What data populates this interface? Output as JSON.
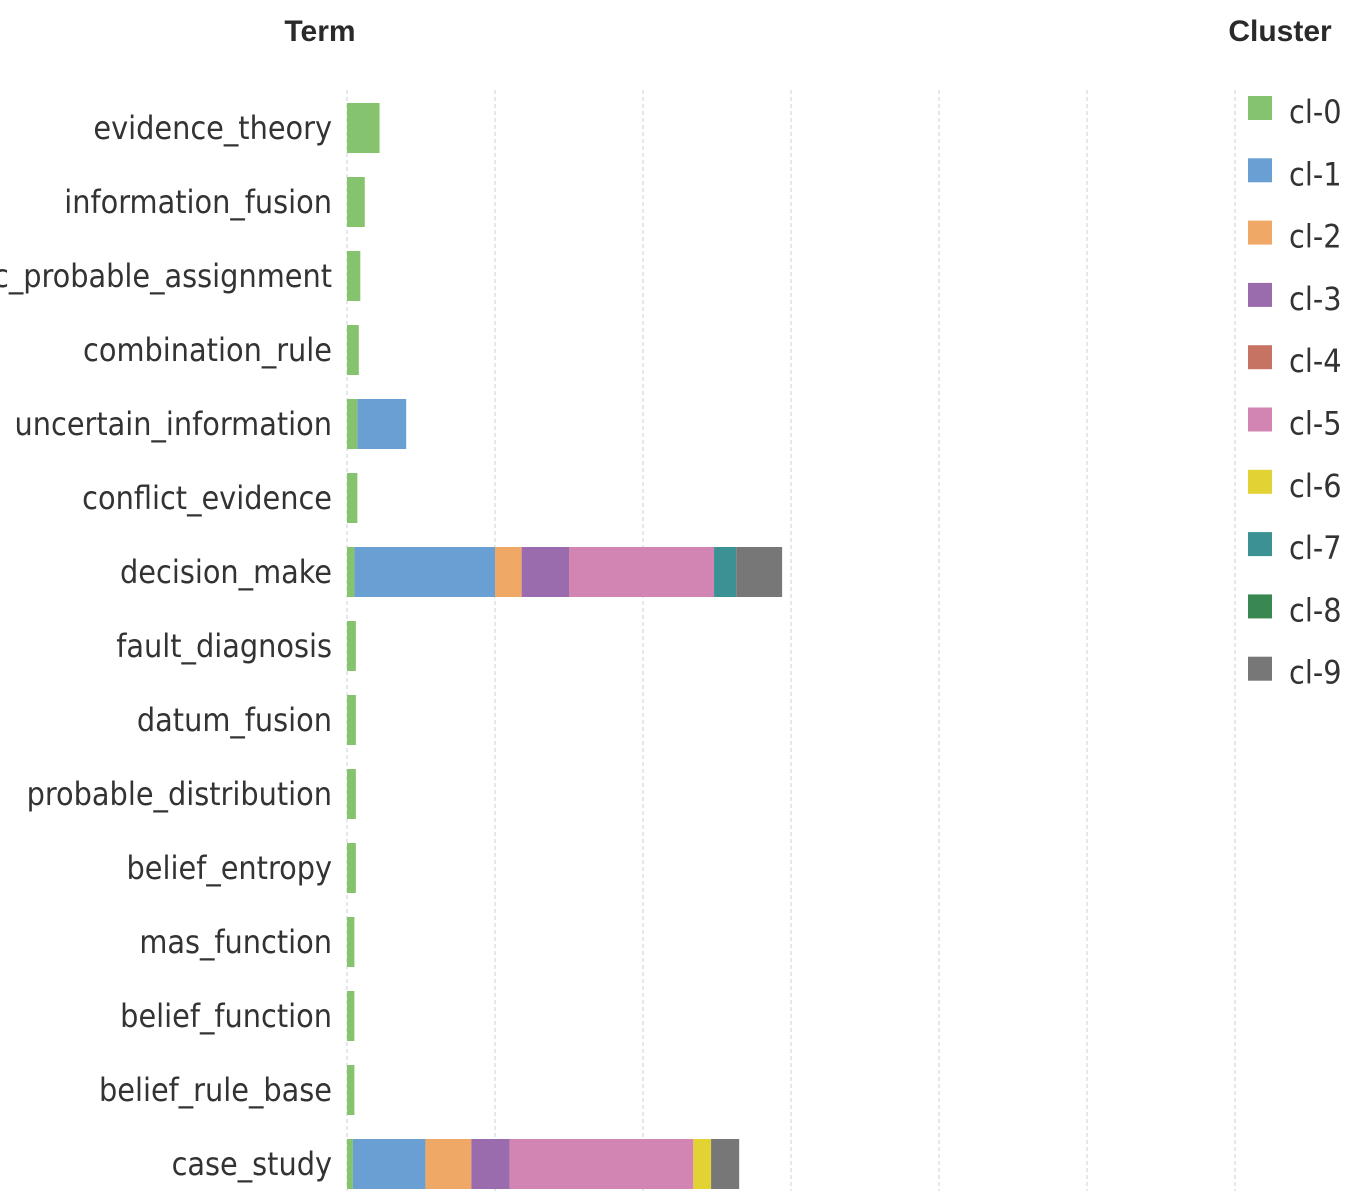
{
  "headers": {
    "term": "Term",
    "cluster": "Cluster"
  },
  "chart_data": {
    "type": "bar",
    "orientation": "horizontal",
    "stacked": true,
    "grid": true,
    "legend_placement": "right",
    "categories": [
      "evidence_theory",
      "information_fusion",
      "basic_probable_assignment",
      "combination_rule",
      "uncertain_information",
      "conflict_evidence",
      "decision_make",
      "fault_diagnosis",
      "datum_fusion",
      "probable_distribution",
      "belief_entropy",
      "mas_function",
      "belief_function",
      "belief_rule_base",
      "case_study"
    ],
    "xlim": [
      0,
      30
    ],
    "grid_step": 5,
    "series": [
      {
        "name": "cl-0",
        "color": "#86c36e",
        "values": [
          1.1,
          0.6,
          0.45,
          0.4,
          0.35,
          0.35,
          0.25,
          0.3,
          0.3,
          0.3,
          0.3,
          0.25,
          0.25,
          0.25,
          0.2
        ]
      },
      {
        "name": "cl-1",
        "color": "#6a9fd3",
        "values": [
          0,
          0,
          0,
          0,
          1.65,
          0,
          4.75,
          0,
          0,
          0,
          0,
          0,
          0,
          0,
          2.45
        ]
      },
      {
        "name": "cl-2",
        "color": "#f0a866",
        "values": [
          0,
          0,
          0,
          0,
          0,
          0,
          0.9,
          0,
          0,
          0,
          0,
          0,
          0,
          0,
          1.55
        ]
      },
      {
        "name": "cl-3",
        "color": "#9b6cad",
        "values": [
          0,
          0,
          0,
          0,
          0,
          0,
          1.6,
          0,
          0,
          0,
          0,
          0,
          0,
          0,
          1.3
        ]
      },
      {
        "name": "cl-4",
        "color": "#c77363",
        "values": [
          0,
          0,
          0,
          0,
          0,
          0,
          0,
          0,
          0,
          0,
          0,
          0,
          0,
          0,
          0
        ]
      },
      {
        "name": "cl-5",
        "color": "#d284b3",
        "values": [
          0,
          0,
          0,
          0,
          0,
          0,
          4.9,
          0,
          0,
          0,
          0,
          0,
          0,
          0,
          6.2
        ]
      },
      {
        "name": "cl-6",
        "color": "#e3d233",
        "values": [
          0,
          0,
          0,
          0,
          0,
          0,
          0,
          0,
          0,
          0,
          0,
          0,
          0,
          0,
          0.6
        ]
      },
      {
        "name": "cl-7",
        "color": "#3b9194",
        "values": [
          0,
          0,
          0,
          0,
          0,
          0,
          0.75,
          0,
          0,
          0,
          0,
          0,
          0,
          0,
          0
        ]
      },
      {
        "name": "cl-8",
        "color": "#3a8851",
        "values": [
          0,
          0,
          0,
          0,
          0,
          0,
          0,
          0,
          0,
          0,
          0,
          0,
          0,
          0,
          0
        ]
      },
      {
        "name": "cl-9",
        "color": "#777777",
        "values": [
          0,
          0,
          0,
          0,
          0,
          0,
          1.55,
          0,
          0,
          0,
          0,
          0,
          0,
          0,
          0.95
        ]
      }
    ]
  }
}
